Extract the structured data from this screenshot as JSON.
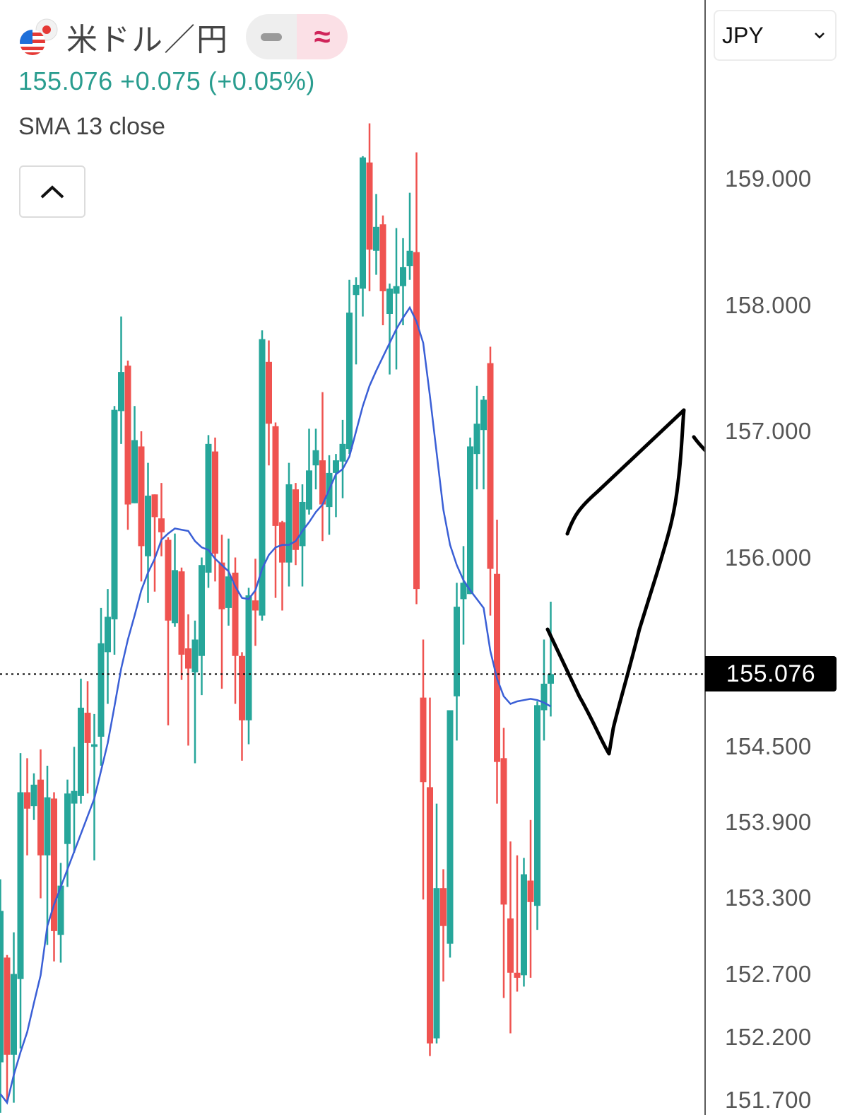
{
  "header": {
    "symbol_title": "米ドル／円",
    "mode_pill": {
      "left_icon": "minus-icon",
      "right_icon": "approx-icon",
      "right_label": "≈"
    },
    "price": "155.076",
    "change": "+0.075",
    "change_pct": "(+0.05%)",
    "indicator_label": "SMA 13 close",
    "collapse_icon": "chevron-up-icon"
  },
  "currency_select": {
    "value": "JPY",
    "icon": "chevron-down-icon"
  },
  "colors": {
    "up": "#26a69a",
    "down": "#ef5350",
    "sma": "#3a5fd6",
    "price_text": "#2a9d8f"
  },
  "chart_data": {
    "type": "candlestick",
    "title": "",
    "price_axis_ticks": [
      "159.000",
      "158.000",
      "157.000",
      "156.000",
      "154.500",
      "153.900",
      "153.300",
      "152.700",
      "152.200",
      "151.700"
    ],
    "ylim": [
      151.6,
      159.6
    ],
    "last_price": "155.076",
    "last_price_line": "dotted",
    "grid": false,
    "candle_fields": [
      "open",
      "high",
      "low",
      "close"
    ],
    "candles": [
      [
        152.0,
        153.45,
        151.6,
        153.2
      ],
      [
        152.83,
        152.85,
        151.69,
        152.06
      ],
      [
        152.06,
        153.03,
        151.68,
        152.7
      ],
      [
        152.66,
        154.45,
        152.11,
        154.14
      ],
      [
        154.14,
        154.41,
        153.64,
        154.01
      ],
      [
        154.03,
        154.29,
        153.92,
        154.2
      ],
      [
        154.24,
        154.48,
        153.3,
        153.64
      ],
      [
        153.64,
        154.35,
        152.93,
        154.1
      ],
      [
        154.09,
        154.14,
        152.8,
        153.04
      ],
      [
        153.01,
        153.58,
        152.79,
        153.4
      ],
      [
        153.73,
        154.24,
        153.39,
        154.13
      ],
      [
        154.05,
        154.5,
        153.66,
        154.15
      ],
      [
        154.11,
        155.04,
        154.05,
        154.81
      ],
      [
        154.77,
        155.02,
        154.13,
        154.53
      ],
      [
        154.5,
        154.76,
        153.6,
        154.52
      ],
      [
        154.58,
        155.6,
        154.35,
        155.32
      ],
      [
        155.25,
        155.75,
        154.84,
        155.53
      ],
      [
        155.51,
        157.2,
        155.23,
        157.17
      ],
      [
        157.16,
        157.91,
        156.9,
        157.47
      ],
      [
        157.52,
        157.56,
        156.22,
        156.42
      ],
      [
        156.43,
        157.2,
        156.43,
        156.93
      ],
      [
        156.88,
        157.0,
        155.81,
        156.09
      ],
      [
        156.01,
        156.75,
        155.64,
        156.49
      ],
      [
        156.5,
        156.5,
        155.73,
        156.32
      ],
      [
        156.31,
        156.59,
        156.01,
        156.2
      ],
      [
        156.14,
        156.16,
        154.67,
        155.5
      ],
      [
        155.48,
        156.19,
        155.45,
        155.9
      ],
      [
        155.89,
        155.92,
        155.03,
        155.23
      ],
      [
        155.28,
        155.55,
        154.51,
        155.12
      ],
      [
        155.09,
        155.5,
        154.37,
        155.35
      ],
      [
        155.22,
        156.0,
        154.91,
        155.94
      ],
      [
        155.88,
        156.97,
        155.76,
        156.9
      ],
      [
        156.84,
        156.95,
        155.81,
        156.03
      ],
      [
        155.96,
        156.18,
        154.96,
        155.59
      ],
      [
        155.6,
        156.15,
        155.46,
        155.85
      ],
      [
        155.88,
        156.0,
        154.84,
        155.22
      ],
      [
        155.22,
        155.25,
        154.39,
        154.71
      ],
      [
        154.71,
        155.76,
        154.52,
        155.7
      ],
      [
        155.66,
        155.99,
        155.3,
        155.58
      ],
      [
        155.54,
        157.8,
        155.5,
        157.73
      ],
      [
        157.55,
        157.72,
        156.73,
        157.06
      ],
      [
        157.04,
        157.07,
        155.68,
        156.25
      ],
      [
        156.28,
        156.29,
        155.58,
        155.96
      ],
      [
        155.96,
        156.75,
        155.77,
        156.58
      ],
      [
        156.54,
        156.59,
        155.94,
        156.06
      ],
      [
        156.09,
        156.58,
        155.77,
        156.44
      ],
      [
        156.38,
        157.02,
        156.34,
        156.69
      ],
      [
        156.73,
        157.02,
        156.54,
        156.85
      ],
      [
        156.77,
        157.31,
        156.13,
        156.42
      ],
      [
        156.4,
        156.81,
        156.18,
        156.67
      ],
      [
        156.67,
        156.82,
        156.32,
        156.77
      ],
      [
        156.76,
        157.09,
        156.47,
        156.9
      ],
      [
        156.86,
        158.2,
        156.82,
        157.94
      ],
      [
        158.08,
        158.22,
        157.53,
        158.16
      ],
      [
        158.13,
        159.18,
        157.91,
        159.17
      ],
      [
        159.13,
        159.44,
        158.11,
        158.44
      ],
      [
        158.43,
        158.88,
        158.24,
        158.62
      ],
      [
        158.64,
        158.71,
        157.84,
        158.11
      ],
      [
        157.93,
        158.17,
        157.45,
        158.13
      ],
      [
        158.09,
        158.61,
        157.49,
        158.15
      ],
      [
        158.15,
        158.53,
        157.84,
        158.3
      ],
      [
        158.31,
        158.89,
        158.2,
        158.43
      ],
      [
        158.42,
        159.21,
        155.63,
        155.75
      ],
      [
        154.89,
        155.35,
        153.29,
        154.22
      ],
      [
        154.18,
        154.89,
        152.05,
        152.15
      ],
      [
        152.19,
        154.05,
        152.15,
        153.38
      ],
      [
        153.38,
        153.53,
        152.64,
        153.08
      ],
      [
        152.94,
        154.79,
        152.83,
        154.79
      ],
      [
        154.9,
        155.8,
        154.55,
        155.61
      ],
      [
        155.67,
        156.09,
        155.31,
        155.8
      ],
      [
        155.71,
        156.95,
        155.71,
        156.88
      ],
      [
        156.82,
        157.36,
        156.54,
        157.06
      ],
      [
        157.01,
        157.28,
        156.54,
        157.25
      ],
      [
        157.54,
        157.67,
        155.54,
        155.91
      ],
      [
        155.87,
        156.3,
        154.05,
        154.38
      ],
      [
        154.41,
        154.65,
        152.51,
        153.25
      ],
      [
        153.14,
        153.75,
        152.23,
        152.71
      ],
      [
        152.71,
        153.64,
        152.56,
        152.67
      ],
      [
        152.69,
        153.62,
        152.6,
        153.49
      ],
      [
        153.44,
        153.92,
        152.67,
        153.27
      ],
      [
        153.24,
        154.86,
        153.05,
        154.83
      ],
      [
        154.79,
        155.35,
        154.55,
        155.0
      ],
      [
        155.0,
        155.65,
        154.74,
        155.076
      ]
    ],
    "series": [
      {
        "name": "SMA 13 close",
        "type": "line",
        "values": [
          151.75,
          151.68,
          151.9,
          152.08,
          152.24,
          152.47,
          152.69,
          153.08,
          153.25,
          153.39,
          153.53,
          153.67,
          153.81,
          153.95,
          154.09,
          154.31,
          154.53,
          154.82,
          155.12,
          155.35,
          155.54,
          155.74,
          155.88,
          155.99,
          156.14,
          156.19,
          156.23,
          156.22,
          156.21,
          156.13,
          156.08,
          156.06,
          155.99,
          155.94,
          155.89,
          155.77,
          155.68,
          155.67,
          155.74,
          155.91,
          156.02,
          156.08,
          156.1,
          156.1,
          156.13,
          156.21,
          156.28,
          156.36,
          156.42,
          156.54,
          156.66,
          156.7,
          156.8,
          157.0,
          157.2,
          157.36,
          157.48,
          157.59,
          157.7,
          157.81,
          157.9,
          157.98,
          157.87,
          157.7,
          157.28,
          156.83,
          156.38,
          156.1,
          155.94,
          155.82,
          155.74,
          155.67,
          155.6,
          155.26,
          155.04,
          154.9,
          154.84,
          154.86,
          154.87,
          154.88,
          154.87,
          154.85,
          154.82
        ]
      }
    ]
  }
}
